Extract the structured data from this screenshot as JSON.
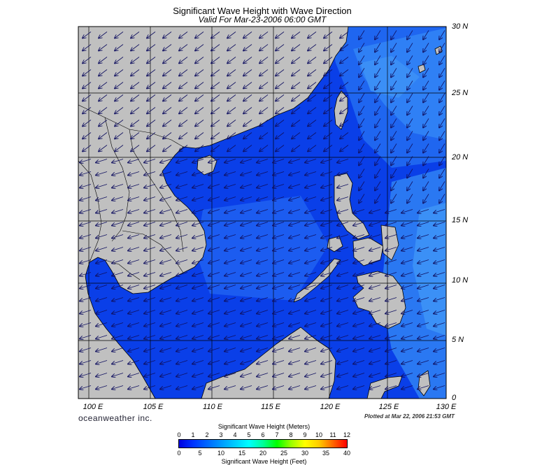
{
  "header": {
    "title": "Significant Wave Height with Wave Direction",
    "valid": "Valid For Mar-23-2006 06:00 GMT"
  },
  "map": {
    "lon_range": [
      99,
      130
    ],
    "lat_range": [
      0,
      30
    ],
    "lat_labels": [
      "30 N",
      "25 N",
      "20 N",
      "15 N",
      "10 N",
      "5 N",
      "0"
    ],
    "lon_labels": [
      "100 E",
      "105 E",
      "110 E",
      "115 E",
      "120 E",
      "125 E",
      "130 E"
    ],
    "land_color": "#c0c0c0",
    "arrow_direction": "southwest (NE monsoon)"
  },
  "footer": {
    "brand": "oceanweather inc.",
    "plotted": "Plotted at Mar 22, 2006 21:53 GMT"
  },
  "legend": {
    "title_meters": "Significant Wave Height (Meters)",
    "title_feet": "Significant Wave Height (Feet)",
    "meters_ticks": [
      "0",
      "1",
      "2",
      "3",
      "4",
      "5",
      "6",
      "7",
      "8",
      "9",
      "10",
      "11",
      "12"
    ],
    "feet_ticks": [
      "0",
      "5",
      "10",
      "15",
      "20",
      "25",
      "30",
      "35",
      "40"
    ],
    "colors": [
      "#0000e0",
      "#0033ff",
      "#0066ff",
      "#0099ff",
      "#00ccff",
      "#00ffff",
      "#00ff99",
      "#00ff00",
      "#99ff00",
      "#ffff00",
      "#ffcc00",
      "#ff6600",
      "#ff0000"
    ]
  }
}
